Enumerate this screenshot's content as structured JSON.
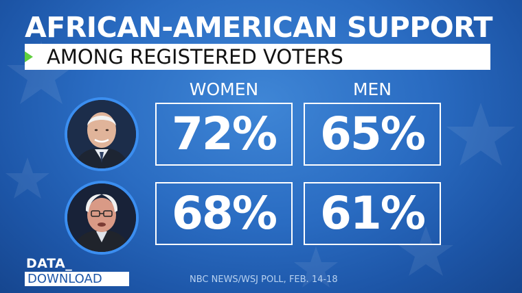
{
  "title": "AFRICAN-AMERICAN SUPPORT",
  "subtitle": "AMONG REGISTERED VOTERS",
  "columns": {
    "women": "WOMEN",
    "men": "MEN"
  },
  "rows": [
    {
      "women": "72%",
      "men": "65%"
    },
    {
      "women": "68%",
      "men": "61%"
    }
  ],
  "branding": {
    "data": "DATA_",
    "download": "DOWNLOAD"
  },
  "source": "NBC NEWS/WSJ POLL, FEB. 14-18",
  "colors": {
    "background": "#2a6cc2",
    "accent_green": "#5fcf3e",
    "avatar_ring": "#3b8ef0"
  }
}
